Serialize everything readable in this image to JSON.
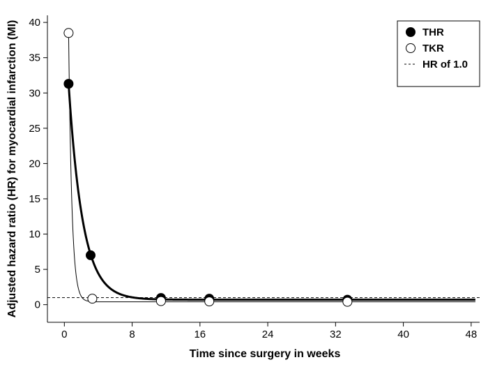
{
  "chart_data": {
    "type": "line",
    "xlabel": "Time since surgery in weeks",
    "ylabel": "Adjusted hazard ratio (HR) for myocardial infarction (MI)",
    "xlim": [
      -2,
      49
    ],
    "ylim": [
      -2.5,
      41
    ],
    "xticks": [
      0,
      8,
      16,
      24,
      32,
      40,
      48
    ],
    "yticks": [
      0,
      5,
      10,
      15,
      20,
      25,
      30,
      35,
      40
    ],
    "grid": false,
    "legend_position": "top-right",
    "reference_line": {
      "name": "HR of 1.0",
      "y": 1.0,
      "style": "dashed"
    },
    "series": [
      {
        "name": "THR",
        "marker": "filled-circle",
        "line_weight": "bold",
        "points": [
          {
            "x": 0.5,
            "y": 31.3
          },
          {
            "x": 3.1,
            "y": 7.0
          },
          {
            "x": 11.4,
            "y": 0.95
          },
          {
            "x": 17.1,
            "y": 0.85
          },
          {
            "x": 33.4,
            "y": 0.7
          }
        ]
      },
      {
        "name": "TKR",
        "marker": "open-circle",
        "line_weight": "thin",
        "points": [
          {
            "x": 0.5,
            "y": 38.5
          },
          {
            "x": 3.3,
            "y": 0.85
          },
          {
            "x": 11.4,
            "y": 0.5
          },
          {
            "x": 17.1,
            "y": 0.45
          },
          {
            "x": 33.4,
            "y": 0.4
          }
        ]
      }
    ]
  }
}
